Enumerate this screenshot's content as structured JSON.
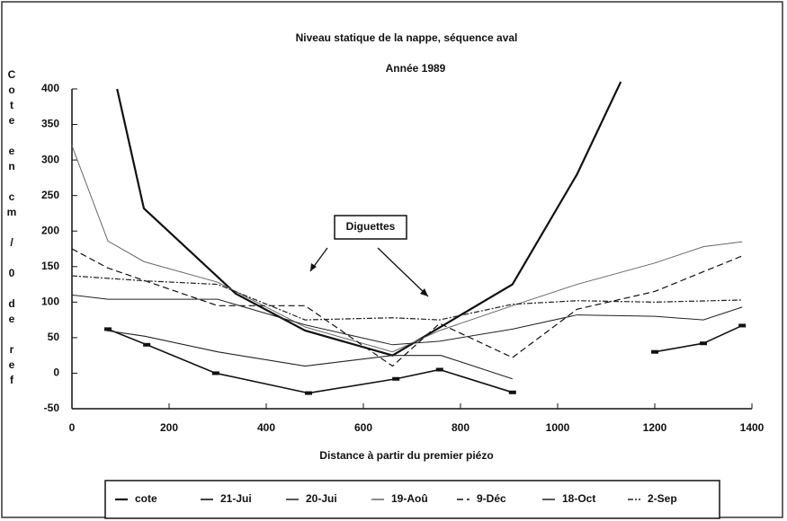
{
  "chart_data": {
    "type": "line",
    "title": "Niveau statique de la nappe, séquence aval",
    "subtitle": "Année 1989",
    "y_label": "Cote en cm / 0 de ref",
    "x_label": "Distance à partir du premier piézo",
    "annotation": "Diguettes",
    "xlim": [
      0,
      1400
    ],
    "xticks": [
      0,
      200,
      400,
      600,
      800,
      1000,
      1200,
      1400
    ],
    "ylim": [
      -50,
      400
    ],
    "yticks": [
      -50,
      0,
      50,
      100,
      150,
      200,
      250,
      300,
      350,
      400
    ],
    "series": [
      {
        "name": "cote",
        "color": "#111",
        "width": 2.2,
        "dash": "none",
        "marker": false,
        "x": [
          93,
          148,
          337,
          480,
          660,
          907,
          1040,
          1130
        ],
        "values": [
          400,
          232,
          112,
          60,
          25,
          125,
          280,
          410
        ]
      },
      {
        "name": "21-Jui",
        "color": "#111",
        "width": 1.6,
        "dash": "none",
        "marker": true,
        "x": [
          74,
          154,
          296,
          487,
          667,
          757,
          907,
          1040,
          1200,
          1300,
          1380
        ],
        "values": [
          62,
          40,
          0,
          -28,
          -8,
          5,
          -27,
          null,
          30,
          42,
          67
        ]
      },
      {
        "name": "20-Jui",
        "color": "#222",
        "width": 1.1,
        "dash": "none",
        "marker": false,
        "x": [
          70,
          150,
          300,
          480,
          660,
          760,
          907
        ],
        "values": [
          60,
          52,
          30,
          10,
          25,
          25,
          -8
        ]
      },
      {
        "name": "19-Aoû",
        "color": "#666",
        "width": 1,
        "dash": "none",
        "marker": false,
        "x": [
          0,
          74,
          148,
          300,
          480,
          660,
          757,
          907,
          1040,
          1200,
          1300,
          1380
        ],
        "values": [
          320,
          186,
          157,
          128,
          65,
          30,
          60,
          95,
          125,
          155,
          178,
          185
        ]
      },
      {
        "name": "9-Déc",
        "color": "#111",
        "width": 1.2,
        "dash": "7 4",
        "marker": false,
        "x": [
          0,
          74,
          300,
          480,
          660,
          757,
          907,
          1040,
          1200,
          1380
        ],
        "values": [
          175,
          148,
          95,
          95,
          10,
          70,
          22,
          90,
          115,
          165
        ]
      },
      {
        "name": "18-Oct",
        "color": "#222",
        "width": 1,
        "dash": "none",
        "marker": false,
        "x": [
          0,
          74,
          300,
          480,
          660,
          757,
          907,
          1040,
          1200,
          1300,
          1380
        ],
        "values": [
          110,
          104,
          104,
          68,
          40,
          45,
          62,
          82,
          80,
          75,
          93
        ]
      },
      {
        "name": "2-Sep",
        "color": "#222",
        "width": 1.2,
        "dash": "6 2 2 2",
        "marker": false,
        "x": [
          0,
          148,
          300,
          480,
          660,
          757,
          907,
          1040,
          1200,
          1380
        ],
        "values": [
          137,
          130,
          125,
          75,
          78,
          75,
          97,
          102,
          100,
          103
        ]
      }
    ]
  }
}
